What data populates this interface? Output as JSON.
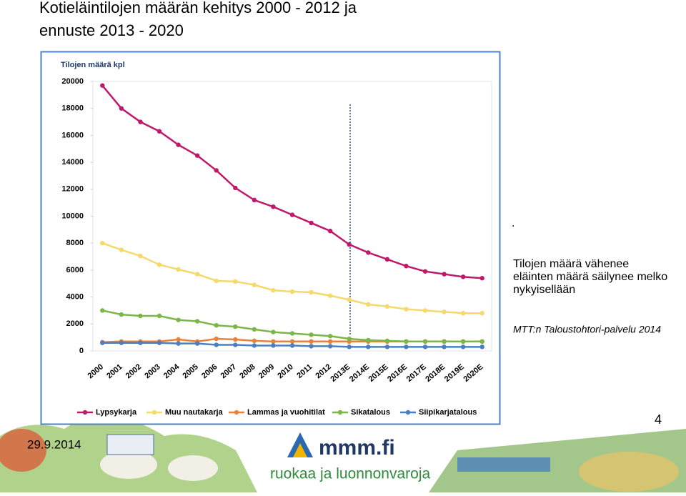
{
  "slide": {
    "title": [
      "Kotieläintilojen määrän kehitys 2000 - 2012 ja",
      "ennuste 2013 - 2020"
    ],
    "dot": ".",
    "note": [
      "Tilojen määrä vähenee",
      "eläinten määrä säilynee melko",
      "nykyisellään"
    ],
    "source": "MTT:n Taloustohtori-palvelu 2014",
    "date": "29.9.2014",
    "page": "4",
    "logo": "mmm.fi",
    "slogan": "ruokaa ja luonnonvaroja"
  },
  "chart_data": {
    "type": "line",
    "y_label": "Tilojen määrä kpl",
    "categories": [
      "2000",
      "2001",
      "2002",
      "2003",
      "2004",
      "2005",
      "2006",
      "2007",
      "2008",
      "2009",
      "2010",
      "2011",
      "2012",
      "2013E",
      "2014E",
      "2015E",
      "2016E",
      "2017E",
      "2018E",
      "2019E",
      "2020E"
    ],
    "ylim": [
      0,
      20000
    ],
    "yticks": [
      0,
      2000,
      4000,
      6000,
      8000,
      10000,
      12000,
      14000,
      16000,
      18000,
      20000
    ],
    "series": [
      {
        "name": "Lypsykarja",
        "color": "#c0186a",
        "values": [
          19700,
          18000,
          17000,
          16300,
          15300,
          14500,
          13400,
          12100,
          11200,
          10700,
          10100,
          9500,
          8900,
          7900,
          7300,
          6800,
          6300,
          5900,
          5700,
          5500,
          5400
        ]
      },
      {
        "name": "Muu nautakarja",
        "color": "#f5d96b",
        "values": [
          8000,
          7500,
          7050,
          6400,
          6050,
          5700,
          5200,
          5150,
          4900,
          4500,
          4400,
          4350,
          4100,
          3800,
          3450,
          3300,
          3100,
          3000,
          2900,
          2800,
          2800
        ]
      },
      {
        "name": "Lammas ja vuohitilat",
        "color": "#e8823a",
        "values": [
          650,
          700,
          700,
          700,
          850,
          700,
          900,
          850,
          750,
          700,
          700,
          700,
          700,
          700,
          700,
          700,
          700,
          700,
          700,
          700,
          700
        ]
      },
      {
        "name": "Sikatalous",
        "color": "#7ab648",
        "values": [
          3000,
          2700,
          2600,
          2600,
          2300,
          2200,
          1900,
          1800,
          1600,
          1400,
          1300,
          1200,
          1100,
          900,
          800,
          750,
          700,
          700,
          700,
          700,
          700
        ]
      },
      {
        "name": "Siipikarjatalous",
        "color": "#4a7fc1",
        "values": [
          600,
          600,
          600,
          600,
          550,
          550,
          450,
          450,
          400,
          400,
          400,
          350,
          350,
          300,
          300,
          300,
          300,
          300,
          300,
          300,
          300
        ]
      }
    ]
  }
}
